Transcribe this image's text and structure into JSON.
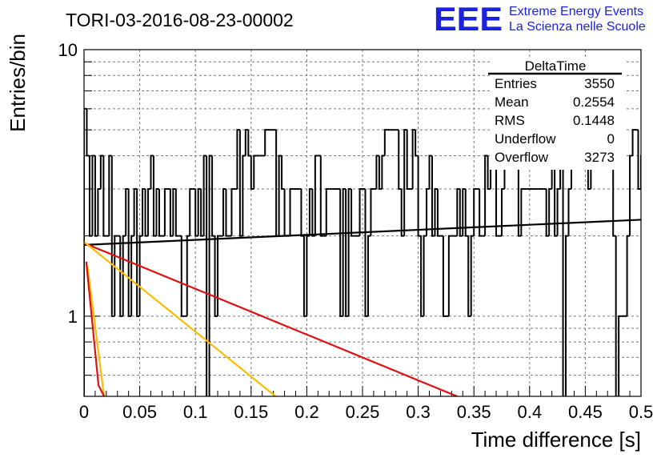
{
  "header": {
    "run_title": "TORI-03-2016-08-23-00002",
    "logo_letters": "EEE",
    "logo_line1": "Extreme Energy Events",
    "logo_line2": "La Scienza nelle Scuole",
    "logo_color": "#1a22dd"
  },
  "stats": {
    "name": "DeltaTime",
    "rows": [
      {
        "label": "Entries",
        "value": "3550"
      },
      {
        "label": "Mean",
        "value": "0.2554"
      },
      {
        "label": "RMS",
        "value": "0.1448"
      },
      {
        "label": "Underflow",
        "value": "0"
      },
      {
        "label": "Overflow",
        "value": "3273"
      }
    ]
  },
  "chart_data": {
    "type": "line",
    "subtype": "step-histogram",
    "xlabel": "Time difference [s]",
    "ylabel": "Entries/bin",
    "xlim": [
      0,
      0.5
    ],
    "ylim": [
      0.5,
      10
    ],
    "yscale": "log",
    "grid": true,
    "x_ticks": [
      "0",
      "0.05",
      "0.1",
      "0.15",
      "0.2",
      "0.25",
      "0.3",
      "0.35",
      "0.4",
      "0.45",
      "0.5"
    ],
    "y_ticks": [
      "1",
      "10"
    ],
    "bin_width": 0.0025,
    "counts": [
      6,
      4,
      2,
      4,
      2,
      3,
      4,
      2,
      2,
      4,
      1,
      2,
      2,
      1,
      2,
      3,
      1,
      2,
      3,
      1,
      2,
      3,
      2,
      3,
      4,
      2,
      3,
      2,
      2,
      3,
      3,
      2,
      3,
      2,
      2,
      1,
      1,
      2,
      3,
      3,
      2,
      3,
      2,
      4,
      0,
      4,
      2,
      1,
      2,
      2,
      3,
      2,
      2,
      3,
      3,
      5,
      2,
      4,
      5,
      4,
      3,
      4,
      4,
      4,
      4,
      5,
      5,
      5,
      5,
      2,
      4,
      3,
      2,
      2,
      3,
      3,
      3,
      3,
      2,
      1,
      2,
      3,
      2,
      4,
      4,
      2,
      2,
      3,
      3,
      3,
      3,
      3,
      1,
      3,
      1,
      3,
      2,
      2,
      2,
      3,
      3,
      1,
      2,
      3,
      3,
      4,
      3,
      4,
      5,
      5,
      5,
      5,
      5,
      3,
      2,
      5,
      3,
      3,
      5,
      4,
      2,
      1,
      2,
      3,
      4,
      2,
      3,
      2,
      2,
      1,
      1,
      2,
      2,
      2,
      3,
      2,
      3,
      2,
      1,
      2,
      3,
      3,
      2,
      2,
      4,
      3,
      5,
      4,
      2,
      2,
      3,
      4,
      5,
      5,
      6,
      6,
      2,
      3,
      3,
      3,
      3,
      3,
      3,
      3,
      3,
      3,
      2,
      3,
      4,
      2,
      3,
      4,
      0,
      2,
      3,
      4,
      4,
      4,
      4,
      5,
      5,
      3,
      4,
      4,
      4,
      4,
      5,
      4,
      5,
      4,
      2,
      0,
      1,
      1,
      1,
      2,
      4,
      5,
      5,
      3,
      4
    ],
    "series": [
      {
        "color": "#000000",
        "x": [
          0,
          0.5
        ],
        "y": [
          1.85,
          2.3
        ]
      },
      {
        "color": "#dd1111",
        "x": [
          0,
          0.335
        ],
        "y": [
          1.88,
          0.5
        ]
      },
      {
        "color": "#ffbb00",
        "x": [
          0,
          0.172
        ],
        "y": [
          1.9,
          0.5
        ]
      },
      {
        "color": "#ffbb00",
        "x": [
          0.003,
          0.018
        ],
        "y": [
          1.55,
          0.5
        ]
      },
      {
        "color": "#dd1111",
        "x": [
          0.002,
          0.013,
          0.018
        ],
        "y": [
          1.6,
          0.55,
          0.5
        ]
      }
    ]
  }
}
